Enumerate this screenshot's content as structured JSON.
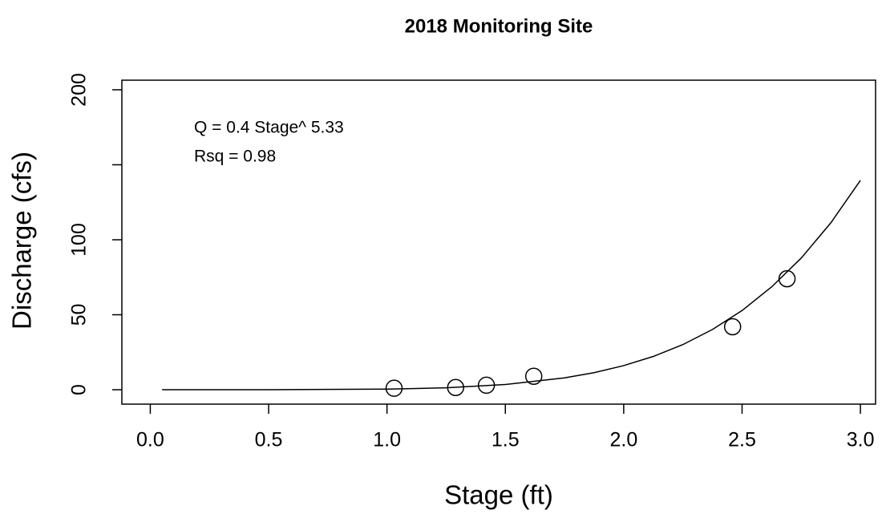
{
  "chart_data": {
    "type": "scatter",
    "title": "2018 Monitoring Site",
    "x_label": "Stage (ft)",
    "y_label": "Discharge (cfs)",
    "annotations": [
      "Q = 0.4 Stage^ 5.33",
      "Rsq = 0.98"
    ],
    "xlim": [
      -0.12,
      3.064
    ],
    "ylim": [
      -9.6,
      206.4
    ],
    "xticks": [
      {
        "value": 0,
        "label": "0.0"
      },
      0.5,
      {
        "value": 1,
        "label": "1.0"
      },
      1.5,
      {
        "value": 2,
        "label": "2.0"
      },
      2.5,
      {
        "value": 3,
        "label": "3.0"
      }
    ],
    "yticks": [
      0,
      50,
      100,
      {
        "value": 150,
        "label": null
      },
      200
    ],
    "series": [
      {
        "style": "points",
        "color": "#000000",
        "x": [
          1.03,
          1.29,
          1.42,
          1.62,
          2.46,
          2.69
        ],
        "values": [
          1,
          1.5,
          3,
          9,
          42,
          74
        ]
      },
      {
        "style": "line",
        "color": "#000000",
        "x": [
          0.05,
          0.5,
          1.0,
          1.25,
          1.5,
          1.75,
          1.875,
          2.0,
          2.125,
          2.25,
          2.375,
          2.5,
          2.625,
          2.75,
          2.875,
          3.0
        ],
        "values": [
          0,
          0.01,
          0.4,
          1.31,
          3.47,
          7.9,
          11.4,
          16.1,
          22.2,
          30.1,
          40.2,
          52.8,
          68.6,
          87.8,
          111.3,
          139.6
        ]
      }
    ]
  }
}
